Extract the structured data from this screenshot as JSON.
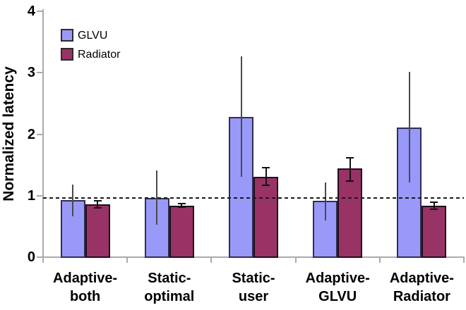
{
  "chart_data": {
    "type": "bar",
    "title": "",
    "xlabel": "",
    "ylabel": "Normalized latency",
    "ylim": [
      0,
      4
    ],
    "yticks": [
      0,
      1,
      2,
      3,
      4
    ],
    "grid": false,
    "legend_position": "top-left-inside",
    "axis_color": "#ababab",
    "reference_line": {
      "value": 0.96,
      "style": "dashed",
      "color": "#1a1a1a"
    },
    "categories": [
      "Adaptive-both",
      "Static-optimal",
      "Static-user",
      "Adaptive-GLVU",
      "Adaptive-Radiator"
    ],
    "category_label_lines": [
      [
        "Adaptive-",
        "both"
      ],
      [
        "Static-",
        "optimal"
      ],
      [
        "Static-",
        "user"
      ],
      [
        "Adaptive-",
        "GLVU"
      ],
      [
        "Adaptive-",
        "Radiator"
      ]
    ],
    "series": [
      {
        "name": "GLVU",
        "color": "#9999FA",
        "border_color": "#2e2e52",
        "error_color": "#4a4a4a",
        "error_caps": false,
        "values": [
          0.92,
          0.95,
          2.27,
          0.9,
          2.1
        ],
        "error_low": [
          0.65,
          0.51,
          1.29,
          0.59,
          1.2
        ],
        "error_high": [
          1.17,
          1.4,
          3.25,
          1.2,
          3.0
        ]
      },
      {
        "name": "Radiator",
        "color": "#993366",
        "border_color": "#1f0d1c",
        "error_color": "#111111",
        "error_caps": true,
        "values": [
          0.85,
          0.83,
          1.3,
          1.43,
          0.83
        ],
        "error_low": [
          0.79,
          0.8,
          1.16,
          1.23,
          0.77
        ],
        "error_high": [
          0.91,
          0.86,
          1.44,
          1.61,
          0.88
        ]
      }
    ]
  }
}
